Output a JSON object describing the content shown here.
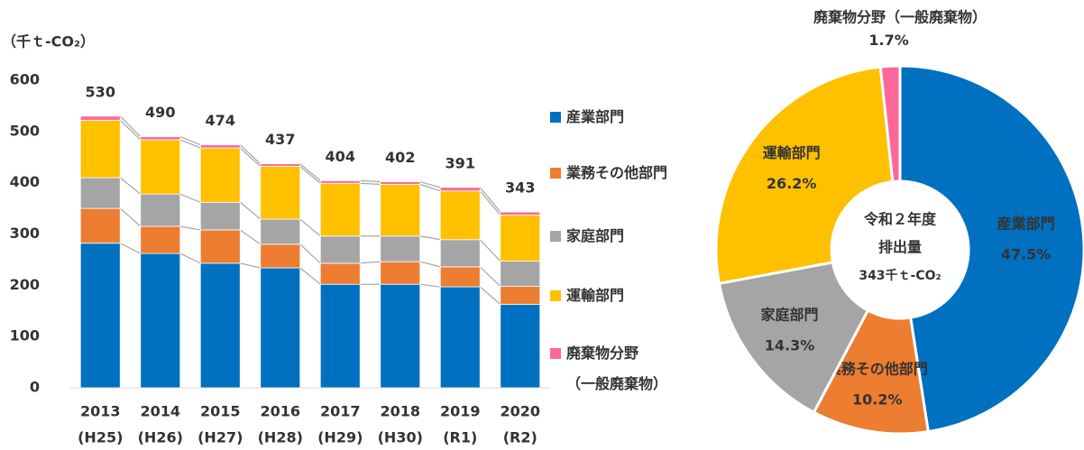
{
  "chart_data": [
    {
      "type": "bar",
      "stacked": true,
      "y_axis_label": "（千ｔ-CO₂）",
      "categories": [
        "2013",
        "2014",
        "2015",
        "2016",
        "2017",
        "2018",
        "2019",
        "2020"
      ],
      "sublabels": [
        "(H25)",
        "(H26)",
        "(H27)",
        "(H28)",
        "(H29)",
        "(H30)",
        "(R1)",
        "(R2)"
      ],
      "series": [
        {
          "name": "産業部門",
          "color": "#0070c0",
          "values": [
            282,
            262,
            243,
            234,
            202,
            202,
            197,
            163
          ]
        },
        {
          "name": "業務その他部門",
          "color": "#ed7d31",
          "values": [
            68,
            53,
            65,
            46,
            41,
            44,
            39,
            35
          ]
        },
        {
          "name": "家庭部門",
          "color": "#a5a5a5",
          "values": [
            60,
            63,
            54,
            49,
            53,
            50,
            53,
            49
          ]
        },
        {
          "name": "運輸部門",
          "color": "#ffc000",
          "values": [
            112,
            106,
            106,
            103,
            103,
            101,
            95,
            90
          ]
        },
        {
          "name": "廃棄物分野（一般廃棄物）",
          "color": "#ff6699",
          "values": [
            8,
            6,
            6,
            5,
            5,
            5,
            7,
            6
          ]
        }
      ],
      "totals": [
        530,
        490,
        474,
        437,
        404,
        402,
        391,
        343
      ],
      "ylim": [
        0,
        600
      ],
      "yticks": [
        0,
        100,
        200,
        300,
        400,
        500,
        600
      ],
      "grid": false
    },
    {
      "type": "pie",
      "title": "廃棄物分野（一般廃棄物）",
      "categories": [
        "産業部門",
        "業務その他部門",
        "家庭部門",
        "運輸部門",
        null
      ],
      "values": [
        47.5,
        10.2,
        14.3,
        26.2,
        1.7
      ],
      "value_labels": [
        "47.5%",
        "10.2%",
        "14.3%",
        "26.2%",
        "1.7%"
      ],
      "colors": [
        "#0070c0",
        "#ed7d31",
        "#a5a5a5",
        "#ffc000",
        "#ff6699"
      ],
      "center_text": [
        "令和２年度",
        "排出量",
        "343千ｔ-CO₂"
      ]
    }
  ]
}
